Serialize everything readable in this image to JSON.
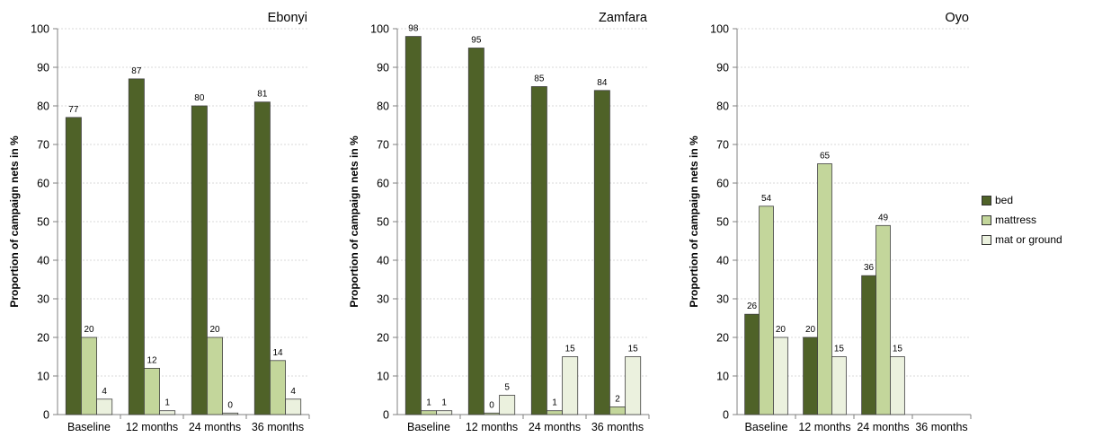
{
  "chart_data": [
    {
      "type": "bar",
      "title": "Ebonyi",
      "ylabel": "Proportion of campaign nets in %",
      "xlabel": "",
      "ylim": [
        0,
        100
      ],
      "yticks": [
        0,
        10,
        20,
        30,
        40,
        50,
        60,
        70,
        80,
        90,
        100
      ],
      "grid": true,
      "categories": [
        "Baseline",
        "12 months",
        "24 months",
        "36 months"
      ],
      "series": [
        {
          "name": "bed",
          "values": [
            77,
            87,
            80,
            81
          ],
          "labels": [
            "77",
            "87",
            "80",
            "81"
          ]
        },
        {
          "name": "mattress",
          "values": [
            20,
            12,
            20,
            14
          ],
          "labels": [
            "20",
            "12",
            "20",
            "14"
          ]
        },
        {
          "name": "mat or ground",
          "values": [
            4,
            1,
            0.4,
            4
          ],
          "labels": [
            "4",
            "1",
            "0",
            "4"
          ]
        }
      ]
    },
    {
      "type": "bar",
      "title": "Zamfara",
      "ylabel": "Proportion of campaign nets in %",
      "xlabel": "",
      "ylim": [
        0,
        100
      ],
      "yticks": [
        0,
        10,
        20,
        30,
        40,
        50,
        60,
        70,
        80,
        90,
        100
      ],
      "grid": true,
      "categories": [
        "Baseline",
        "12 months",
        "24 months",
        "36 months"
      ],
      "series": [
        {
          "name": "bed",
          "values": [
            98,
            95,
            85,
            84
          ],
          "labels": [
            "98",
            "95",
            "85",
            "84"
          ]
        },
        {
          "name": "mattress",
          "values": [
            1,
            0.4,
            1,
            2
          ],
          "labels": [
            "1",
            "0",
            "1",
            "2"
          ]
        },
        {
          "name": "mat or ground",
          "values": [
            1,
            5,
            15,
            15
          ],
          "labels": [
            "1",
            "5",
            "15",
            "15"
          ]
        }
      ]
    },
    {
      "type": "bar",
      "title": "Oyo",
      "ylabel": "Proportion of campaign nets in %",
      "xlabel": "",
      "ylim": [
        0,
        100
      ],
      "yticks": [
        0,
        10,
        20,
        30,
        40,
        50,
        60,
        70,
        80,
        90,
        100
      ],
      "grid": true,
      "categories": [
        "Baseline",
        "12 months",
        "24 months",
        "36 months"
      ],
      "series": [
        {
          "name": "bed",
          "values": [
            26,
            20,
            36,
            null
          ],
          "labels": [
            "26",
            "20",
            "36",
            ""
          ]
        },
        {
          "name": "mattress",
          "values": [
            54,
            65,
            49,
            null
          ],
          "labels": [
            "54",
            "65",
            "49",
            ""
          ]
        },
        {
          "name": "mat or ground",
          "values": [
            20,
            15,
            15,
            null
          ],
          "labels": [
            "20",
            "15",
            "15",
            ""
          ]
        }
      ]
    }
  ],
  "legend": {
    "placement": "right",
    "items": [
      {
        "label": "bed",
        "color": "#4f6228"
      },
      {
        "label": "mattress",
        "color": "#c3d69b"
      },
      {
        "label": "mat or ground",
        "color": "#ebf1de"
      }
    ]
  },
  "colors": {
    "bar_stroke": "#404040",
    "grid": "#d9d9d9",
    "axis": "#808080"
  }
}
